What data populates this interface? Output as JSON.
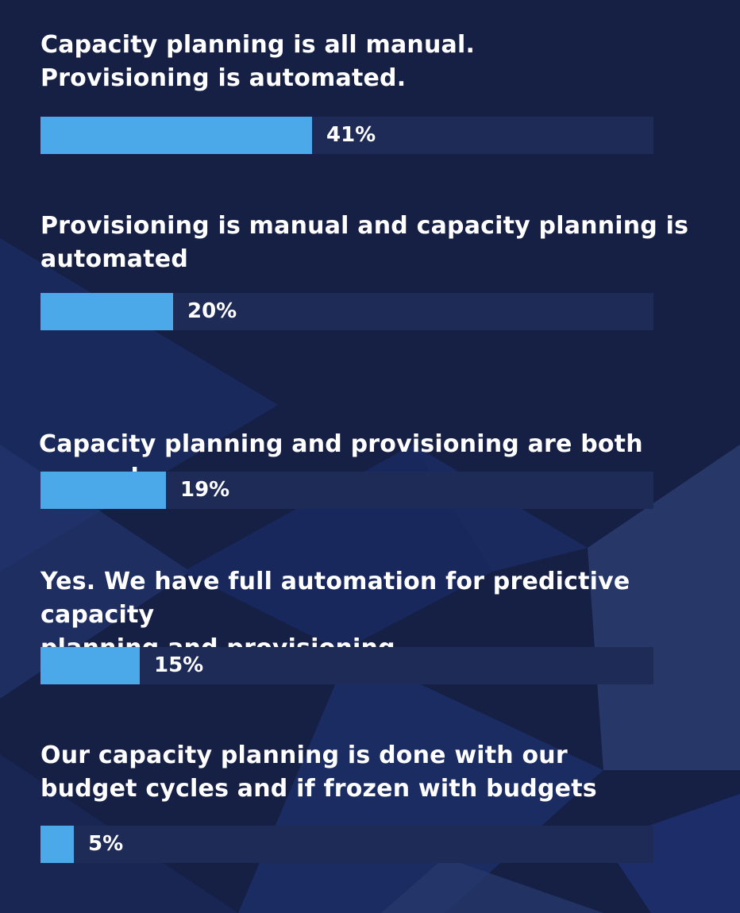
{
  "colors": {
    "background": "#161f44",
    "track": "#1f2b57",
    "bar": "#4ba9ea",
    "text": "#ffffff"
  },
  "chart_data": {
    "type": "bar",
    "orientation": "horizontal",
    "unit": "%",
    "xlim": [
      0,
      100
    ],
    "grid": false,
    "categories": [
      "Capacity planning is all manual.\nProvisioning is automated.",
      "Provisioning is manual and capacity planning is\nautomated",
      "Capacity planning and provisioning are both manual",
      "Yes. We have full automation for predictive capacity\nplanning and provisioning",
      "Our capacity planning is done with our\nbudget cycles and if frozen with budgets"
    ],
    "values": [
      41,
      20,
      19,
      15,
      5
    ],
    "value_labels": [
      "41%",
      "20%",
      "19%",
      "15%",
      "5%"
    ]
  }
}
